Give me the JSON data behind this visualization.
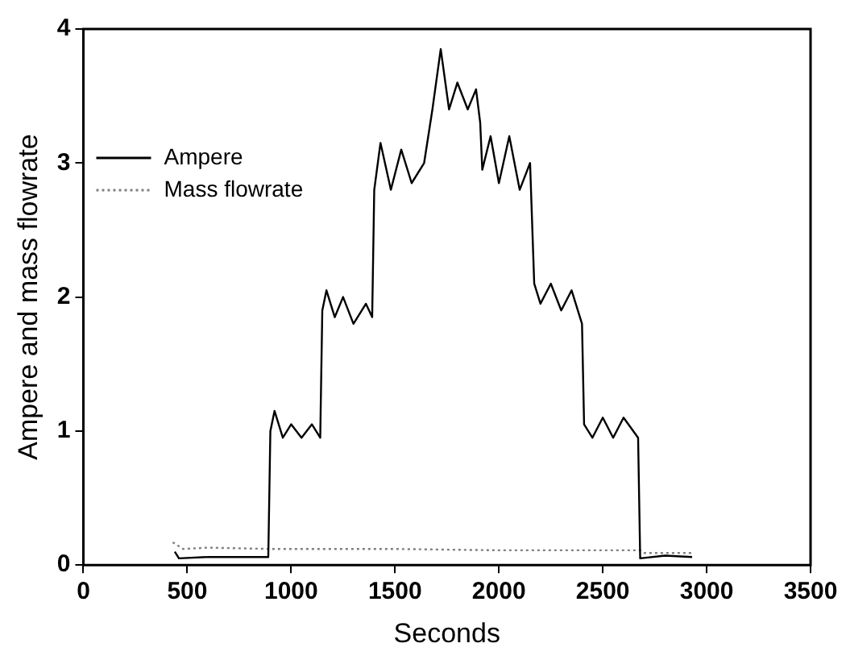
{
  "chart_data": {
    "type": "line",
    "xlabel": "Seconds",
    "ylabel": "Ampere and mass flowrate",
    "xlim": [
      0,
      3500
    ],
    "xticks": [
      0,
      500,
      1000,
      1500,
      2000,
      2500,
      3000,
      3500
    ],
    "ylim": [
      0,
      4
    ],
    "yticks": [
      0,
      1,
      2,
      3,
      4
    ],
    "grid": false,
    "legend": "top left",
    "marker": "none",
    "series": [
      {
        "name": "Ampere",
        "color": "#000000",
        "line_style": "solid",
        "x": [
          440,
          460,
          600,
          890,
          900,
          920,
          960,
          1000,
          1050,
          1100,
          1140,
          1150,
          1170,
          1210,
          1250,
          1300,
          1360,
          1390,
          1400,
          1430,
          1480,
          1530,
          1580,
          1640,
          1660,
          1680,
          1720,
          1760,
          1800,
          1850,
          1890,
          1910,
          1920,
          1960,
          2000,
          2050,
          2100,
          2150,
          2170,
          2200,
          2250,
          2300,
          2350,
          2400,
          2410,
          2450,
          2500,
          2550,
          2600,
          2670,
          2680,
          2800,
          2930
        ],
        "values": [
          0.1,
          0.05,
          0.06,
          0.06,
          1.0,
          1.15,
          0.95,
          1.05,
          0.95,
          1.05,
          0.95,
          1.9,
          2.05,
          1.85,
          2.0,
          1.8,
          1.95,
          1.85,
          2.8,
          3.15,
          2.8,
          3.1,
          2.85,
          3.0,
          3.2,
          3.4,
          3.85,
          3.4,
          3.6,
          3.4,
          3.55,
          3.3,
          2.95,
          3.2,
          2.85,
          3.2,
          2.8,
          3.0,
          2.1,
          1.95,
          2.1,
          1.9,
          2.05,
          1.8,
          1.05,
          0.95,
          1.1,
          0.95,
          1.1,
          0.95,
          0.05,
          0.07,
          0.06
        ]
      },
      {
        "name": "Mass flowrate",
        "color": "#808080",
        "line_style": "dotted",
        "x": [
          430,
          480,
          600,
          900,
          1500,
          2000,
          2680,
          2700,
          2930
        ],
        "values": [
          0.17,
          0.12,
          0.13,
          0.12,
          0.12,
          0.11,
          0.11,
          0.09,
          0.09
        ]
      }
    ]
  }
}
